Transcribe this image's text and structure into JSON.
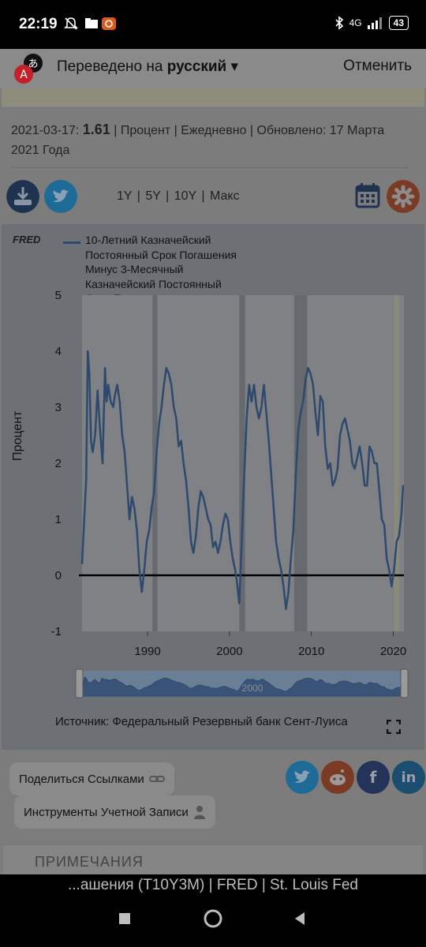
{
  "status_bar": {
    "time": "22:19",
    "network": "4G",
    "battery": "43"
  },
  "translate_bar": {
    "prefix": "Переведено на",
    "language": "русский",
    "cancel_label": "Отменить"
  },
  "series_info": {
    "date": "2021-03-17:",
    "value": "1.61",
    "details": "| Процент | Ежедневно | Обновлено:",
    "updated": "17 Марта 2021 Года"
  },
  "range_buttons": [
    "1Y",
    "5Y",
    "10Y",
    "Макс"
  ],
  "chart_data": {
    "type": "line",
    "title": "",
    "xlabel": "",
    "ylabel": "Процент",
    "ylim": [
      -1,
      5
    ],
    "xlim": [
      1982,
      2021.3
    ],
    "x_ticks": [
      1990,
      2000,
      2010,
      2020
    ],
    "y_ticks": [
      5,
      4,
      3,
      2,
      1,
      0,
      -1
    ],
    "grid": false,
    "legend_position": "top-left",
    "line_color": "#2d4a6e",
    "recession_shading": [
      [
        1990.6,
        1991.2
      ],
      [
        2001.2,
        2001.9
      ],
      [
        2007.9,
        2009.5
      ],
      [
        2020.1,
        2020.4
      ]
    ],
    "series": [
      {
        "name": "10-Летний Казначейский Постоянный Срок Погашения Минус 3-Месячный Казначейский Постоянный Срок Погашения",
        "x": [
          1982.0,
          1982.3,
          1982.5,
          1982.7,
          1982.9,
          1983.1,
          1983.3,
          1983.6,
          1983.9,
          1984.2,
          1984.5,
          1984.8,
          1985.0,
          1985.2,
          1985.5,
          1985.8,
          1986.0,
          1986.3,
          1986.6,
          1986.9,
          1987.2,
          1987.5,
          1987.8,
          1988.1,
          1988.4,
          1988.7,
          1989.0,
          1989.3,
          1989.6,
          1989.9,
          1990.2,
          1990.5,
          1990.8,
          1991.1,
          1991.4,
          1991.7,
          1992.0,
          1992.3,
          1992.6,
          1992.9,
          1993.2,
          1993.5,
          1993.8,
          1994.1,
          1994.4,
          1994.7,
          1995.0,
          1995.3,
          1995.6,
          1995.9,
          1996.2,
          1996.5,
          1996.8,
          1997.1,
          1997.4,
          1997.7,
          1998.0,
          1998.3,
          1998.6,
          1998.9,
          1999.2,
          1999.5,
          1999.8,
          2000.1,
          2000.4,
          2000.7,
          2000.9,
          2001.2,
          2001.5,
          2001.8,
          2002.1,
          2002.4,
          2002.7,
          2003.0,
          2003.3,
          2003.6,
          2003.9,
          2004.2,
          2004.5,
          2004.8,
          2005.1,
          2005.4,
          2005.7,
          2006.0,
          2006.3,
          2006.6,
          2006.9,
          2007.2,
          2007.5,
          2007.8,
          2008.1,
          2008.4,
          2008.7,
          2009.0,
          2009.3,
          2009.6,
          2009.9,
          2010.2,
          2010.5,
          2010.8,
          2011.1,
          2011.4,
          2011.7,
          2012.0,
          2012.3,
          2012.6,
          2012.9,
          2013.2,
          2013.5,
          2013.8,
          2014.1,
          2014.4,
          2014.7,
          2015.0,
          2015.3,
          2015.6,
          2015.9,
          2016.2,
          2016.5,
          2016.8,
          2017.1,
          2017.4,
          2017.7,
          2018.0,
          2018.3,
          2018.6,
          2018.9,
          2019.2,
          2019.5,
          2019.8,
          2020.1,
          2020.4,
          2020.7,
          2021.0,
          2021.2
        ],
        "values": [
          0.2,
          1.1,
          1.7,
          4.0,
          3.6,
          2.4,
          2.2,
          2.5,
          3.3,
          2.6,
          2.0,
          3.7,
          3.1,
          3.4,
          3.1,
          3.0,
          3.2,
          3.4,
          3.1,
          2.5,
          2.2,
          1.6,
          1.0,
          1.4,
          1.2,
          0.8,
          0.1,
          -0.3,
          0.1,
          0.6,
          0.8,
          1.2,
          1.5,
          2.2,
          2.7,
          3.0,
          3.4,
          3.7,
          3.6,
          3.4,
          3.0,
          2.8,
          2.3,
          2.4,
          2.0,
          1.7,
          1.2,
          0.6,
          0.4,
          0.7,
          1.2,
          1.5,
          1.4,
          1.2,
          1.0,
          0.9,
          0.5,
          0.6,
          0.4,
          0.6,
          0.9,
          1.1,
          1.0,
          0.6,
          0.3,
          0.1,
          -0.1,
          -0.5,
          0.6,
          1.8,
          2.8,
          3.4,
          3.1,
          3.4,
          3.0,
          2.8,
          3.0,
          3.4,
          2.9,
          2.4,
          1.8,
          1.2,
          0.6,
          0.3,
          0.1,
          -0.2,
          -0.6,
          -0.3,
          0.3,
          0.8,
          1.8,
          2.6,
          2.9,
          3.1,
          3.5,
          3.7,
          3.6,
          3.4,
          2.9,
          2.5,
          3.2,
          3.1,
          2.3,
          1.9,
          2.0,
          1.6,
          1.7,
          1.9,
          2.5,
          2.7,
          2.8,
          2.6,
          2.4,
          2.0,
          1.9,
          2.1,
          2.3,
          2.0,
          1.6,
          1.6,
          2.3,
          2.2,
          2.0,
          2.0,
          1.5,
          1.0,
          0.9,
          0.3,
          0.1,
          -0.2,
          0.1,
          0.6,
          0.7,
          1.1,
          1.61
        ]
      }
    ]
  },
  "chart_panel": {
    "logo": "FRED",
    "legend": "10-Летний Казначейский Постоянный Срок Погашения Минус 3-Месячный Казначейский Постоянный Срок Погашения",
    "navigator_label": "2000",
    "source": "Источник: Федеральный Резервный банк Сент-Луиса"
  },
  "share_button": "Поделиться Ссылками",
  "account_button": "Инструменты Учетной Записи",
  "notes_heading": "ПРИМЕЧАНИЯ",
  "page_title": "...ашения (T10Y3M) | FRED | St. Louis Fed",
  "icons": [
    "download-icon",
    "twitter-icon",
    "calendar-icon",
    "settings-icon",
    "link-icon",
    "user-icon",
    "reddit-icon",
    "facebook-icon",
    "linkedin-icon",
    "expand-icon",
    "translate-icon"
  ]
}
